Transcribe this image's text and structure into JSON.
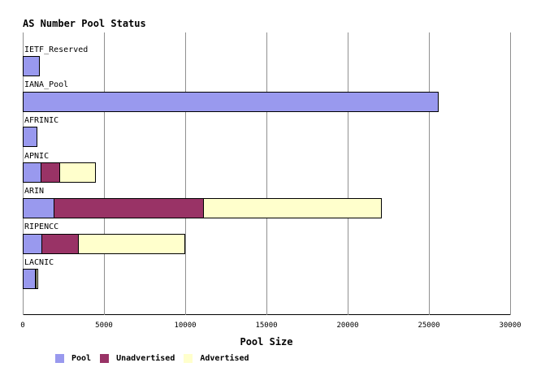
{
  "chart_data": {
    "type": "bar",
    "orientation": "horizontal-stacked",
    "title": "AS Number Pool Status",
    "xlabel": "Pool Size",
    "ylabel": "",
    "xlim": [
      0,
      30000
    ],
    "x_ticks": [
      0,
      5000,
      10000,
      15000,
      20000,
      25000,
      30000
    ],
    "grid": "vertical",
    "legend_position": "bottom",
    "categories": [
      "IETF_Reserved",
      "IANA_Pool",
      "AFRINIC",
      "APNIC",
      "ARIN",
      "RIPENCC",
      "LACNIC"
    ],
    "series": [
      {
        "name": "Pool",
        "color": "#9999ee",
        "values": [
          1050,
          25600,
          875,
          1150,
          1925,
          1200,
          775
        ]
      },
      {
        "name": "Unadvertised",
        "color": "#993366",
        "values": [
          0,
          0,
          0,
          1200,
          9250,
          2300,
          100
        ]
      },
      {
        "name": "Advertised",
        "color": "#ffffcc",
        "values": [
          0,
          0,
          0,
          2250,
          11000,
          6600,
          150
        ]
      }
    ],
    "totals": [
      1050,
      25600,
      875,
      4600,
      22175,
      10100,
      1025
    ]
  },
  "colors": {
    "background": "#ffffff",
    "gridline": "#909090",
    "axis_line": "#000000",
    "bar_border": "#000000",
    "text": "#000000"
  }
}
